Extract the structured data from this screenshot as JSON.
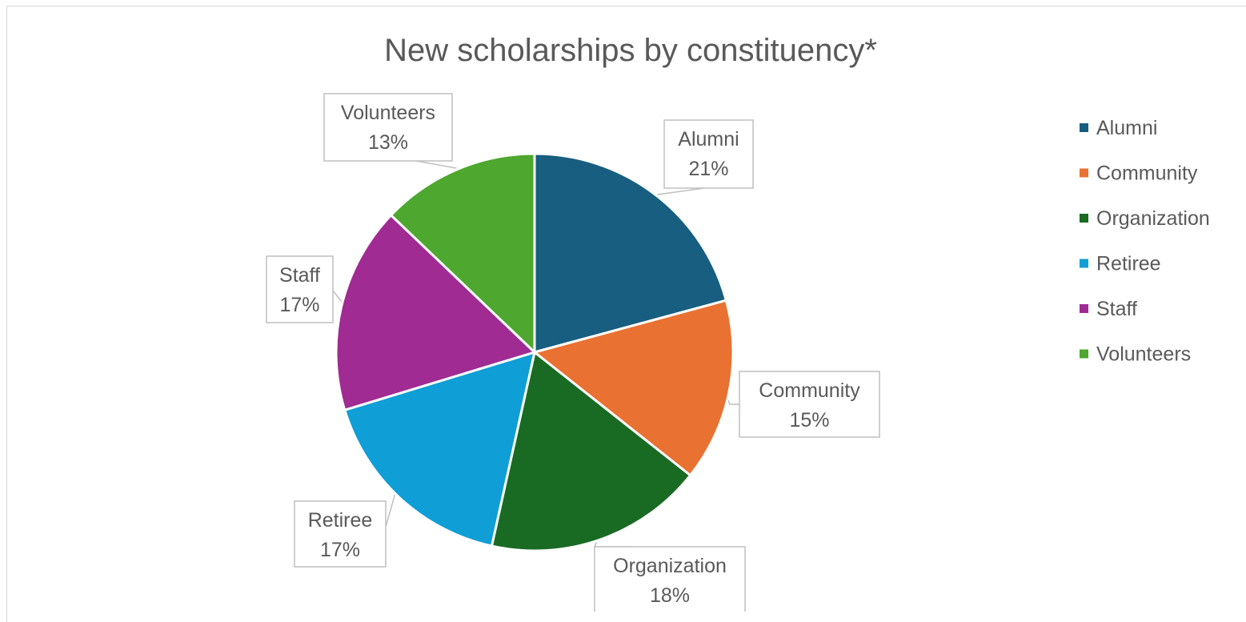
{
  "chart_data": {
    "type": "pie",
    "title": "New scholarships by constituency*",
    "categories": [
      "Alumni",
      "Community",
      "Organization",
      "Retiree",
      "Staff",
      "Volunteers"
    ],
    "values": [
      21,
      15,
      18,
      17,
      17,
      13
    ],
    "value_labels": [
      "21%",
      "15%",
      "18%",
      "17%",
      "17%",
      "13%"
    ],
    "colors": [
      "#175e80",
      "#e97132",
      "#196b24",
      "#0f9ed5",
      "#a02b93",
      "#4ea72e"
    ],
    "legend": {
      "placement": "right",
      "entries": [
        "Alumni",
        "Community",
        "Organization",
        "Retiree",
        "Staff",
        "Volunteers"
      ]
    },
    "start_angle": "12 o'clock",
    "direction": "clockwise"
  }
}
